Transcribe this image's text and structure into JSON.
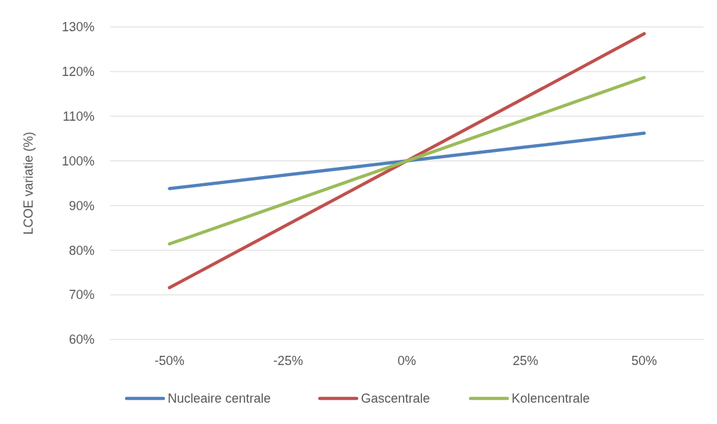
{
  "chart_data": {
    "type": "line",
    "ylabel": "LCOE variatie (%)",
    "categories": [
      "-50%",
      "-25%",
      "0%",
      "25%",
      "50%"
    ],
    "series": [
      {
        "name": "Nucleaire centrale",
        "color": "#4f81bd",
        "values": [
          93.8,
          96.9,
          100,
          103.1,
          106.2
        ]
      },
      {
        "name": "Gascentrale",
        "color": "#c0504d",
        "values": [
          71.6,
          85.8,
          100,
          114.2,
          128.5
        ]
      },
      {
        "name": "Kolencentrale",
        "color": "#9bbb59",
        "values": [
          81.4,
          90.7,
          100,
          109.3,
          118.7
        ]
      }
    ],
    "ylim": [
      60,
      130
    ],
    "yticks": [
      {
        "value": 60,
        "label": "60%"
      },
      {
        "value": 70,
        "label": "70%"
      },
      {
        "value": 80,
        "label": "80%"
      },
      {
        "value": 90,
        "label": "90%"
      },
      {
        "value": 100,
        "label": "100%"
      },
      {
        "value": 110,
        "label": "110%"
      },
      {
        "value": 120,
        "label": "120%"
      },
      {
        "value": 130,
        "label": "130%"
      }
    ],
    "grid": "y",
    "legend": "bottom",
    "marker": "none",
    "line_style": "solid"
  }
}
